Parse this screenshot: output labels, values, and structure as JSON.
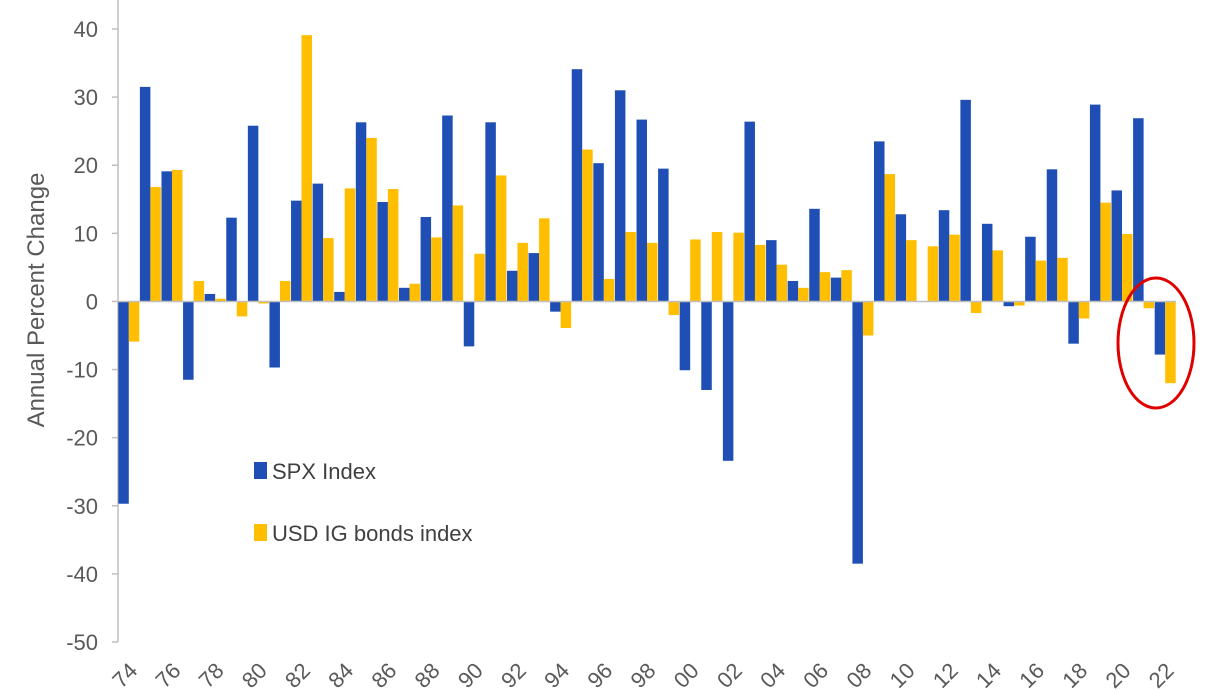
{
  "chart_data": {
    "type": "bar",
    "ylabel": "Annual Percent Change",
    "ylim": [
      -50,
      40
    ],
    "yticks": [
      40,
      30,
      20,
      10,
      0,
      -10,
      -20,
      -30,
      -40,
      -50
    ],
    "grid": false,
    "legend_position": "lower-left",
    "categories": [
      "1974",
      "1975",
      "1976",
      "1977",
      "1978",
      "1979",
      "1980",
      "1981",
      "1982",
      "1983",
      "1984",
      "1985",
      "1986",
      "1987",
      "1988",
      "1989",
      "1990",
      "1991",
      "1992",
      "1993",
      "1994",
      "1995",
      "1996",
      "1997",
      "1998",
      "1999",
      "2000",
      "2001",
      "2002",
      "2003",
      "2004",
      "2005",
      "2006",
      "2007",
      "2008",
      "2009",
      "2010",
      "2011",
      "2012",
      "2013",
      "2014",
      "2015",
      "2016",
      "2017",
      "2018",
      "2019",
      "2020",
      "2021",
      "2022"
    ],
    "x_tick_labels": [
      "74",
      "76",
      "78",
      "80",
      "82",
      "84",
      "86",
      "88",
      "90",
      "92",
      "94",
      "96",
      "98",
      "00",
      "02",
      "04",
      "06",
      "08",
      "10",
      "12",
      "14",
      "16",
      "18",
      "20",
      "22"
    ],
    "series": [
      {
        "name": "SPX Index",
        "color": "#1f4fb4",
        "values": [
          -29.7,
          31.5,
          19.1,
          -11.5,
          1.1,
          12.3,
          25.8,
          -9.7,
          14.8,
          17.3,
          1.4,
          26.3,
          14.6,
          2.0,
          12.4,
          27.3,
          -6.6,
          26.3,
          4.5,
          7.1,
          -1.5,
          34.1,
          20.3,
          31.0,
          26.7,
          19.5,
          -10.1,
          -13.0,
          -23.4,
          26.4,
          9.0,
          3.0,
          13.6,
          3.5,
          -38.5,
          23.5,
          12.8,
          0.0,
          13.4,
          29.6,
          11.4,
          -0.7,
          9.5,
          19.4,
          -6.2,
          28.9,
          16.3,
          26.9,
          -7.8
        ]
      },
      {
        "name": "USD IG bonds index",
        "color": "#ffbf00",
        "values": [
          -5.9,
          16.8,
          19.3,
          3.0,
          0.4,
          -2.2,
          -0.3,
          3.0,
          39.1,
          9.3,
          16.6,
          24.0,
          16.5,
          2.6,
          9.4,
          14.1,
          7.0,
          18.5,
          8.6,
          12.2,
          -3.9,
          22.3,
          3.3,
          10.2,
          8.6,
          -2.0,
          9.1,
          10.2,
          10.1,
          8.3,
          5.4,
          2.0,
          4.3,
          4.6,
          -5.0,
          18.7,
          9.0,
          8.1,
          9.8,
          -1.7,
          7.5,
          -0.6,
          6.0,
          6.4,
          -2.5,
          14.5,
          9.9,
          -1.0,
          -12.0
        ]
      }
    ]
  },
  "legend": [
    {
      "label": "SPX Index",
      "color": "#1f4fb4"
    },
    {
      "label": "USD IG bonds index",
      "color": "#ffbf00"
    }
  ],
  "annotation": {
    "shape": "ellipse",
    "color": "#e00000",
    "target": "2022"
  }
}
